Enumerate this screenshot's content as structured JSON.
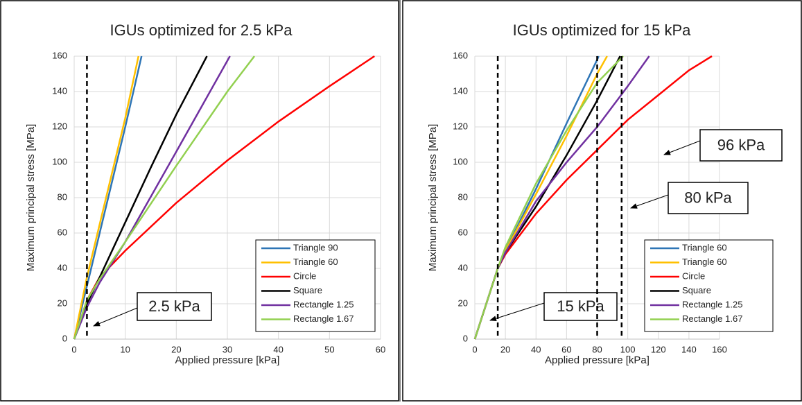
{
  "chart_data": [
    {
      "type": "line",
      "title": "IGUs optimized for 2.5 kPa",
      "x_label": "Applied pressure [kPa]",
      "y_label": "Maximum principal stress [MPa]",
      "xlim": [
        0,
        60
      ],
      "ylim": [
        0,
        160
      ],
      "xticks": [
        0,
        10,
        20,
        30,
        40,
        50,
        60
      ],
      "yticks": [
        0,
        20,
        40,
        60,
        80,
        100,
        120,
        140,
        160
      ],
      "grid": true,
      "legend": "lower right",
      "annotations": [
        {
          "text": "2.5 kPa",
          "x": 2.5
        }
      ],
      "series": [
        {
          "name": "Triangle 90",
          "color": "#2e75b6",
          "x": [
            0,
            2.5,
            5,
            10,
            13.2
          ],
          "values": [
            0,
            30,
            60,
            120,
            160
          ]
        },
        {
          "name": "Triangle 60",
          "color": "#ffc000",
          "x": [
            0,
            2.5,
            5,
            10,
            12.6
          ],
          "values": [
            0,
            35,
            65,
            125,
            160
          ]
        },
        {
          "name": "Circle",
          "color": "#ff0000",
          "x": [
            0,
            2.5,
            5,
            10,
            20,
            30,
            40,
            50,
            58.8
          ],
          "values": [
            0,
            22,
            35,
            50,
            77,
            101,
            123,
            143,
            160
          ]
        },
        {
          "name": "Square",
          "color": "#000000",
          "x": [
            0,
            2.5,
            5,
            10,
            15,
            20,
            26
          ],
          "values": [
            0,
            20,
            35,
            66,
            97,
            127,
            160
          ]
        },
        {
          "name": "Rectangle 1.25",
          "color": "#7030a0",
          "x": [
            0,
            2.5,
            5,
            10,
            20,
            30.5
          ],
          "values": [
            0,
            18,
            32,
            55,
            106,
            160
          ]
        },
        {
          "name": "Rectangle 1.67",
          "color": "#92d050",
          "x": [
            0,
            2.5,
            5,
            10,
            20,
            30,
            35.3
          ],
          "values": [
            0,
            22,
            34,
            55,
            98,
            140,
            160
          ]
        }
      ]
    },
    {
      "type": "line",
      "title": "IGUs optimized for 15 kPa",
      "x_label": "Applied pressure [kPa]",
      "y_label": "Maximum principal stress [MPa]",
      "xlim": [
        0,
        160
      ],
      "ylim": [
        0,
        160
      ],
      "xticks": [
        0,
        20,
        40,
        60,
        80,
        100,
        120,
        140,
        160
      ],
      "yticks": [
        0,
        20,
        40,
        60,
        80,
        100,
        120,
        140,
        160
      ],
      "grid": true,
      "legend": "lower right",
      "annotations": [
        {
          "text": "15 kPa",
          "x": 15
        },
        {
          "text": "80 kPa",
          "x": 80
        },
        {
          "text": "96 kPa",
          "x": 96
        }
      ],
      "series": [
        {
          "name": "Triangle 60",
          "color": "#2e75b6",
          "x": [
            0,
            15,
            20,
            40,
            60,
            80,
            81
          ],
          "values": [
            0,
            40,
            50,
            85,
            122,
            158,
            160
          ]
        },
        {
          "name": "Triangle 60",
          "color": "#ffc000",
          "x": [
            0,
            15,
            20,
            40,
            60,
            80,
            86.5
          ],
          "values": [
            0,
            40,
            50,
            82,
            115,
            150,
            160
          ]
        },
        {
          "name": "Circle",
          "color": "#ff0000",
          "x": [
            0,
            15,
            20,
            40,
            60,
            80,
            100,
            120,
            140,
            155
          ],
          "values": [
            0,
            40,
            48,
            71,
            90,
            107,
            124,
            138,
            152,
            160
          ]
        },
        {
          "name": "Square",
          "color": "#000000",
          "x": [
            0,
            15,
            20,
            40,
            60,
            80,
            95
          ],
          "values": [
            0,
            40,
            49,
            75,
            104,
            135,
            160
          ]
        },
        {
          "name": "Rectangle 1.25",
          "color": "#7030a0",
          "x": [
            0,
            15,
            20,
            40,
            60,
            80,
            100,
            114
          ],
          "values": [
            0,
            40,
            49,
            78,
            100,
            120,
            143,
            160
          ]
        },
        {
          "name": "Rectangle 1.67",
          "color": "#92d050",
          "x": [
            0,
            15,
            20,
            40,
            60,
            80,
            97
          ],
          "values": [
            0,
            40,
            52,
            88,
            118,
            145,
            160
          ]
        }
      ]
    }
  ]
}
